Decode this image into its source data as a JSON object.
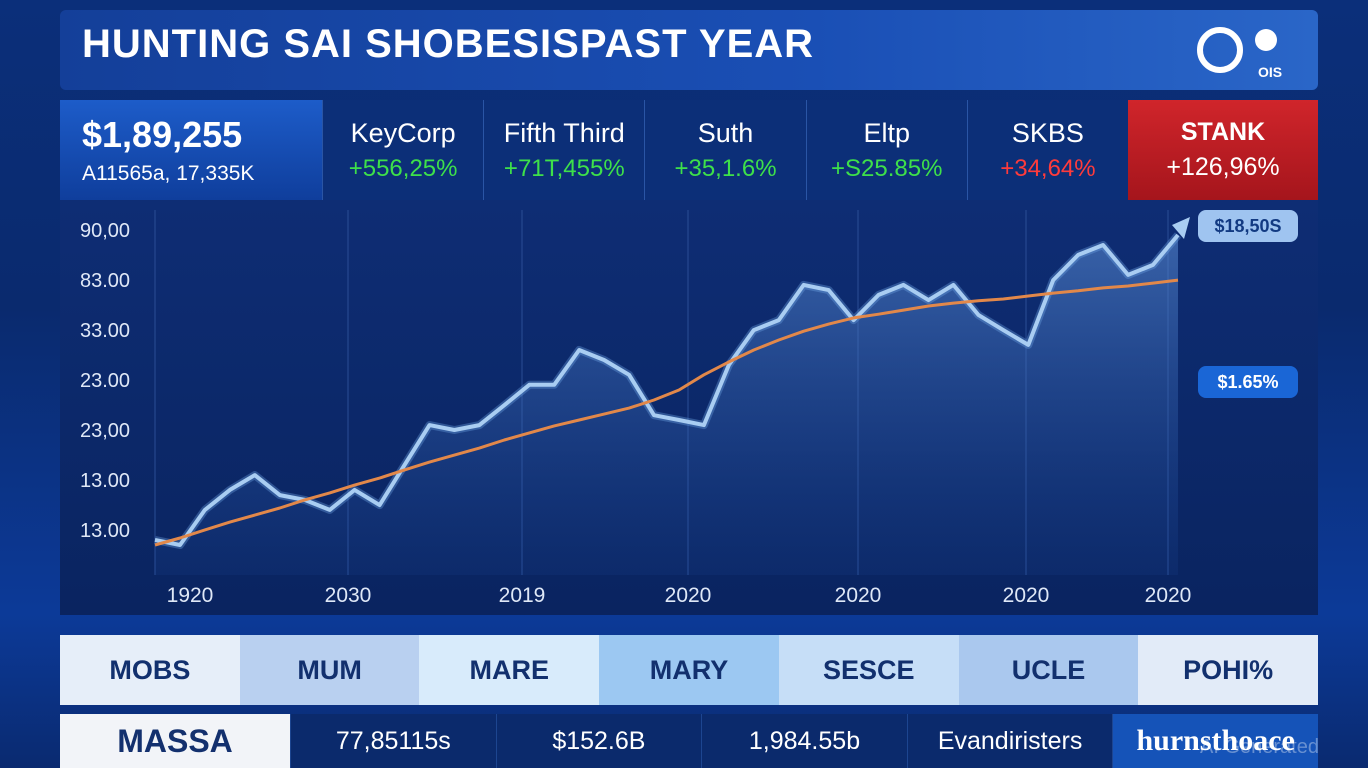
{
  "header": {
    "title": "HUNTING SAI SHOBESISPAST YEAR",
    "logo_text": "OIS"
  },
  "lead": {
    "price": "$1,89,255",
    "sub": "A11565a, 17,335K"
  },
  "tickers": [
    {
      "name": "KeyCorp",
      "change": "+556,25%",
      "color": "#3ee04a"
    },
    {
      "name": "Fifth Third",
      "change": "+71T,455%",
      "color": "#3ee04a"
    },
    {
      "name": "Suth",
      "change": "+35,1.6%",
      "color": "#3ee04a"
    },
    {
      "name": "Eltp",
      "change": "+S25.85%",
      "color": "#3ee04a"
    },
    {
      "name": "SKBS",
      "change": "+34,64%",
      "color": "#ff3b3b"
    }
  ],
  "highlight": {
    "name": "STANK",
    "change": "+126,96%"
  },
  "chart_data": {
    "type": "line",
    "y_axis_labels": [
      "90,00",
      "83.00",
      "33.00",
      "23.00",
      "23,00",
      "13.00",
      "13.00"
    ],
    "x_axis_labels": [
      "1920",
      "2030",
      "2019",
      "2020",
      "2020",
      "2020",
      "2020"
    ],
    "ylim": [
      0,
      100
    ],
    "series": [
      {
        "color": "#a9cdf2",
        "values": [
          9.5,
          8.1,
          17.6,
          23.0,
          27.0,
          21.6,
          20.3,
          17.6,
          23.0,
          18.9,
          29.7,
          40.5,
          39.2,
          40.5,
          45.9,
          51.4,
          51.4,
          60.8,
          58.1,
          54.1,
          43.2,
          41.9,
          40.5,
          56.8,
          66.2,
          68.9,
          78.4,
          77.0,
          68.9,
          75.7,
          78.4,
          74.3,
          78.4,
          70.3,
          66.2,
          62.2,
          79.7,
          86.5,
          89.2,
          81.1,
          83.8,
          91.9
        ]
      },
      {
        "color": "#e2884a",
        "values": [
          8.1,
          10.0,
          12.2,
          14.3,
          16.2,
          18.1,
          20.3,
          22.2,
          24.3,
          26.2,
          28.4,
          30.5,
          32.4,
          34.3,
          36.5,
          38.4,
          40.3,
          41.9,
          43.5,
          45.1,
          47.3,
          50.0,
          54.1,
          57.6,
          60.8,
          63.5,
          65.9,
          67.8,
          69.5,
          70.5,
          71.6,
          72.7,
          73.5,
          74.1,
          74.6,
          75.4,
          76.2,
          76.8,
          77.6,
          78.1,
          78.9,
          79.7
        ]
      }
    ],
    "annotations": [
      "$18,50S",
      "$1.65%"
    ]
  },
  "tabs": [
    "MOBS",
    "MUM",
    "MARE",
    "MARY",
    "SESCE",
    "UCLE",
    "POHI%"
  ],
  "footer": [
    "MASSA",
    "77,85115s",
    "$152.6B",
    "1,984.55b",
    "Evandiristers",
    "hurnsthoace"
  ],
  "watermark": "AI Generated"
}
